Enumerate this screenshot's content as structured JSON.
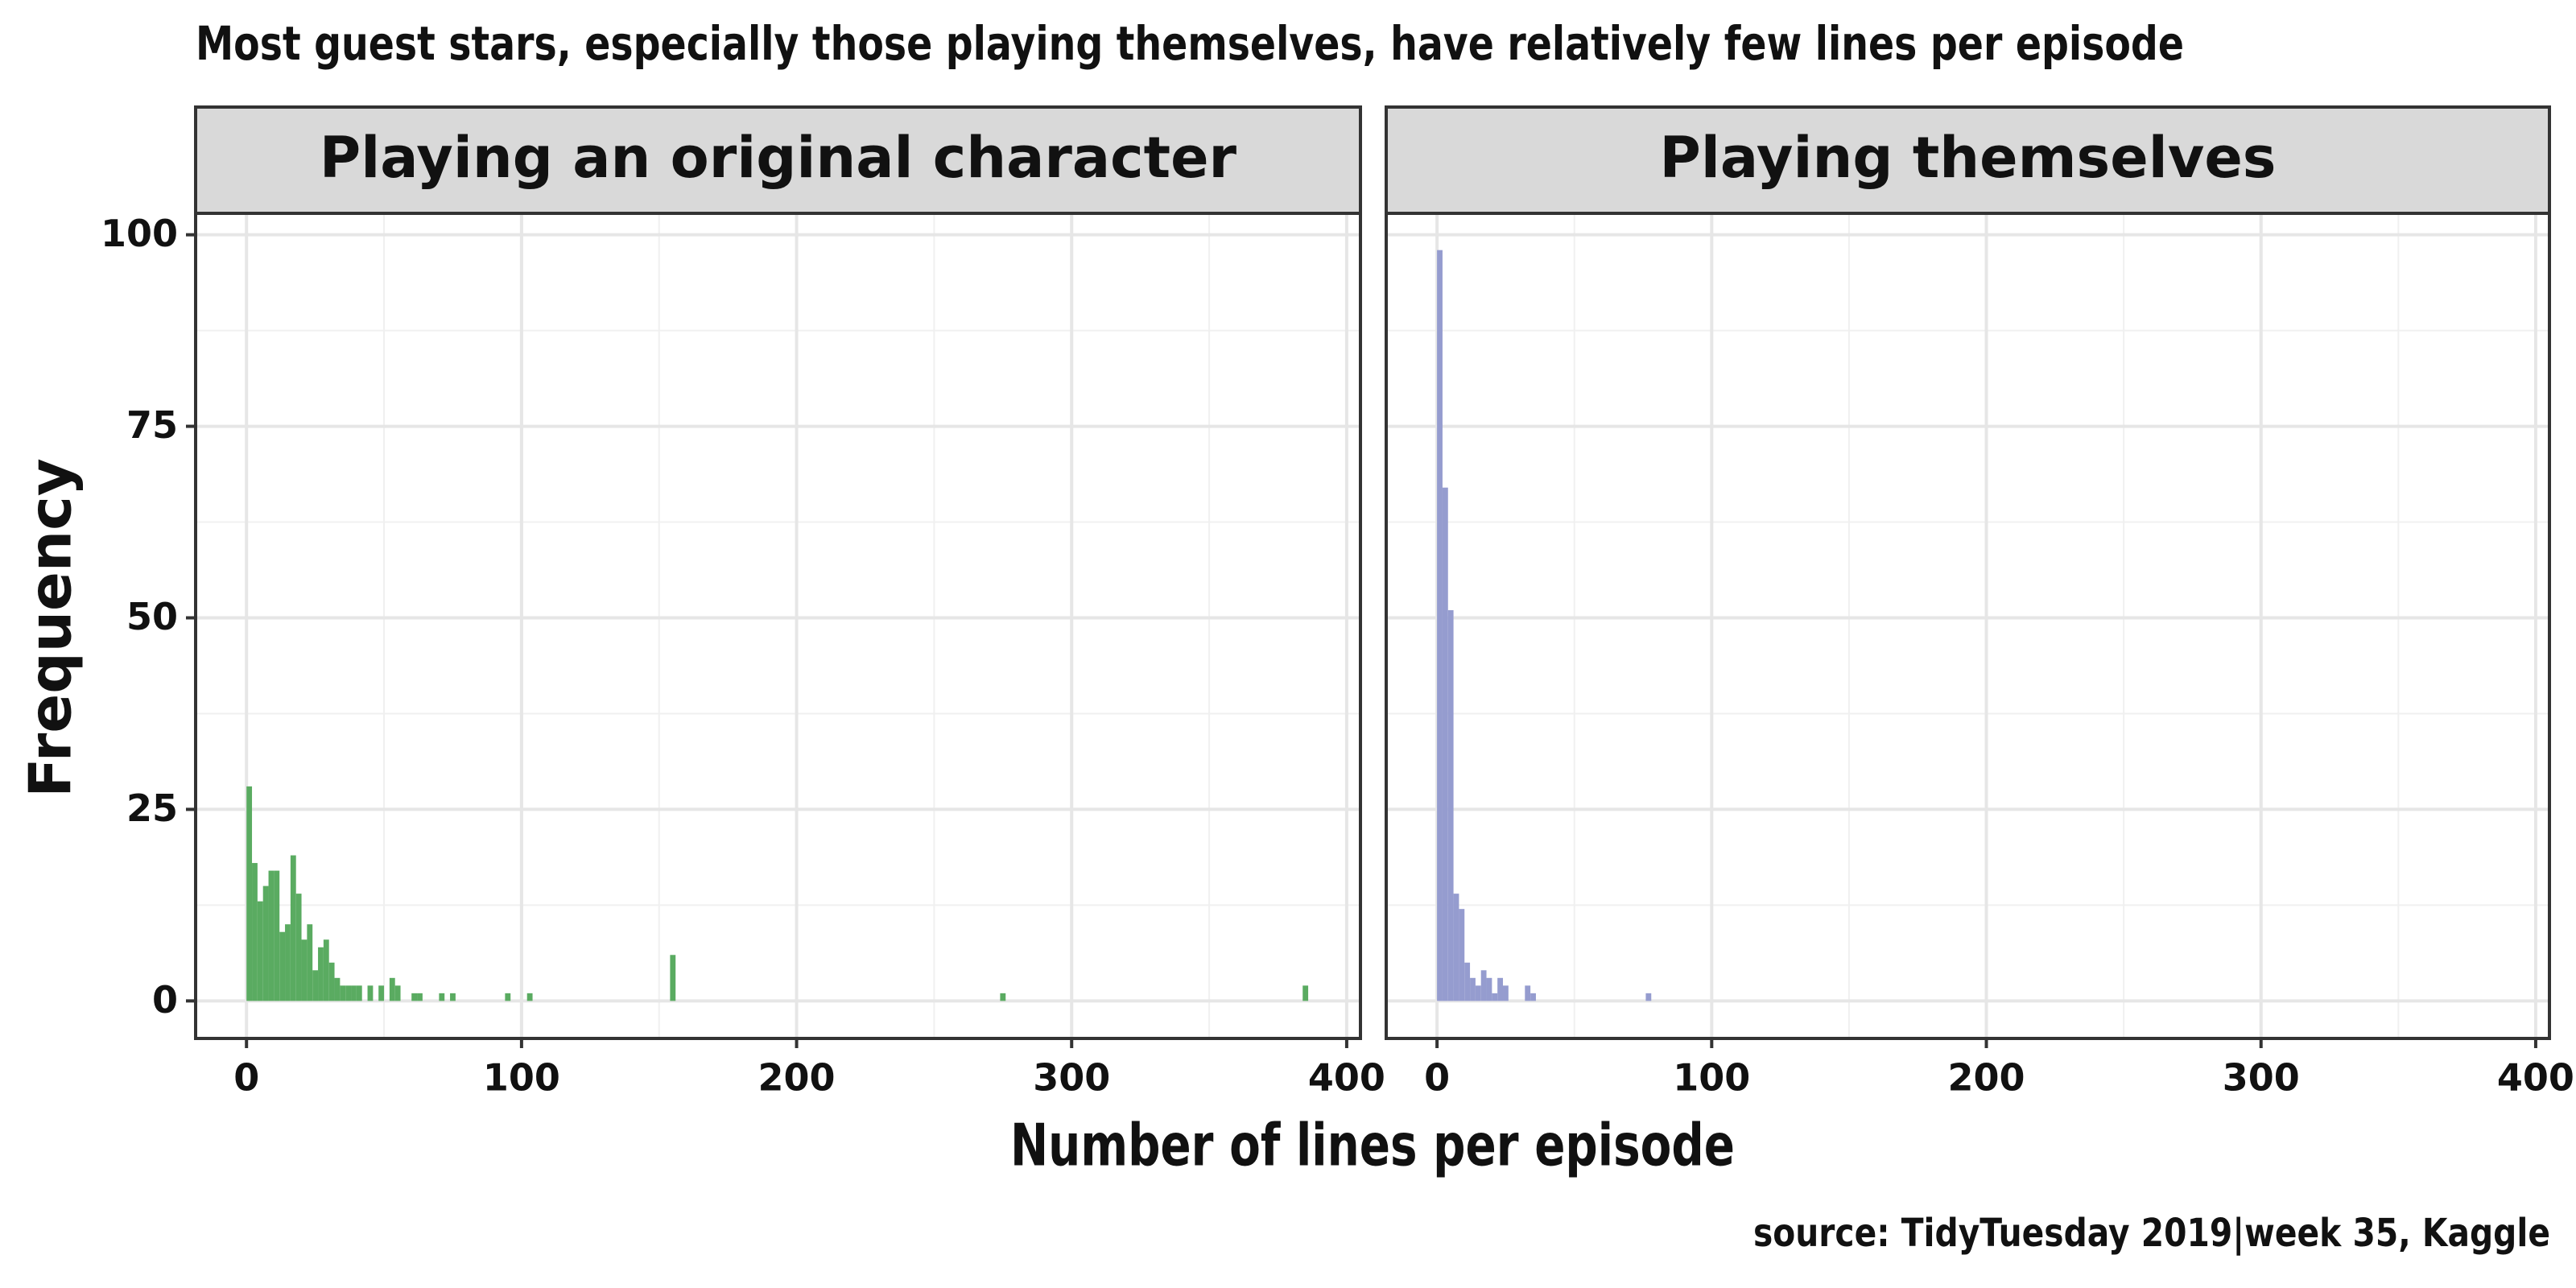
{
  "title": "Most guest stars, especially those playing themselves, have relatively few lines per episode",
  "x_label": "Number of lines per episode",
  "y_label": "Frequency",
  "caption": "source: TidyTuesday 2019|week 35, Kaggle",
  "chart_data": [
    {
      "type": "histogram",
      "title": "Playing an original character",
      "color": "#5aab61",
      "bins": [
        0,
        2,
        4,
        6,
        8,
        10,
        12,
        14,
        16,
        18,
        20,
        22,
        24,
        26,
        28,
        30,
        32,
        34,
        36,
        38,
        40,
        42,
        44,
        46,
        48,
        50,
        52,
        54,
        56,
        58,
        60,
        62,
        64,
        66,
        68,
        70,
        72,
        74,
        76,
        78,
        80,
        94,
        96,
        102,
        104,
        154,
        156,
        274,
        276,
        384,
        386
      ],
      "values": [
        28,
        18,
        13,
        15,
        17,
        17,
        9,
        10,
        19,
        14,
        8,
        10,
        4,
        7,
        8,
        5,
        3,
        2,
        2,
        2,
        2,
        0,
        2,
        0,
        2,
        0,
        3,
        2,
        0,
        0,
        1,
        1,
        0,
        0,
        0,
        1,
        0,
        1,
        0,
        0,
        0,
        1,
        0,
        1,
        0,
        6,
        0,
        1,
        0,
        2
      ],
      "xlim": [
        -18.5,
        405
      ],
      "ylim": [
        -4.9,
        102.8
      ],
      "xticks": [
        0,
        100,
        200,
        300,
        400
      ],
      "yticks": [
        0,
        25,
        50,
        75,
        100
      ],
      "xminor": [
        50,
        150,
        250,
        350
      ],
      "yminor": [
        12.5,
        37.5,
        62.5,
        87.5
      ],
      "grid": true
    },
    {
      "type": "histogram",
      "title": "Playing themselves",
      "color": "#959ccf",
      "bins": [
        0,
        2,
        4,
        6,
        8,
        10,
        12,
        14,
        16,
        18,
        20,
        22,
        24,
        26,
        28,
        30,
        32,
        34,
        36,
        76,
        78
      ],
      "values": [
        98,
        67,
        51,
        14,
        12,
        5,
        3,
        2,
        4,
        3,
        1,
        3,
        2,
        0,
        0,
        0,
        2,
        1,
        0,
        1
      ],
      "xlim": [
        -18.5,
        405
      ],
      "ylim": [
        -4.9,
        102.8
      ],
      "xticks": [
        0,
        100,
        200,
        300,
        400
      ],
      "yticks": [
        0,
        25,
        50,
        75,
        100
      ],
      "xminor": [
        50,
        150,
        250,
        350
      ],
      "yminor": [
        12.5,
        37.5,
        62.5,
        87.5
      ],
      "grid": true
    }
  ]
}
